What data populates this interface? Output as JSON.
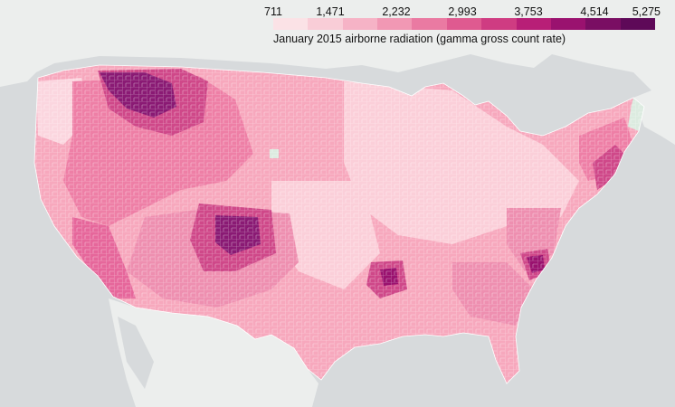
{
  "legend": {
    "ticks": [
      "711",
      "1,471",
      "2,232",
      "2,993",
      "3,753",
      "4,514",
      "5,275"
    ],
    "colors": [
      "#fbe2e6",
      "#f9cdd7",
      "#f6b3c6",
      "#f198b4",
      "#ea7aa2",
      "#df5a90",
      "#cf3c82",
      "#b81f77",
      "#9a126f",
      "#7a0e63",
      "#5e0958"
    ],
    "title": "January 2015 airborne radiation (gamma gross count rate)"
  },
  "colors": {
    "water": "#d7dadc",
    "land_foreign": "#eceeed",
    "base": "#f7a8bd",
    "light": "#fbcfd9",
    "mid": "#ee7fa6",
    "dark": "#cf4889",
    "darkest": "#8a1a74",
    "no_data": "#dcebe0"
  }
}
